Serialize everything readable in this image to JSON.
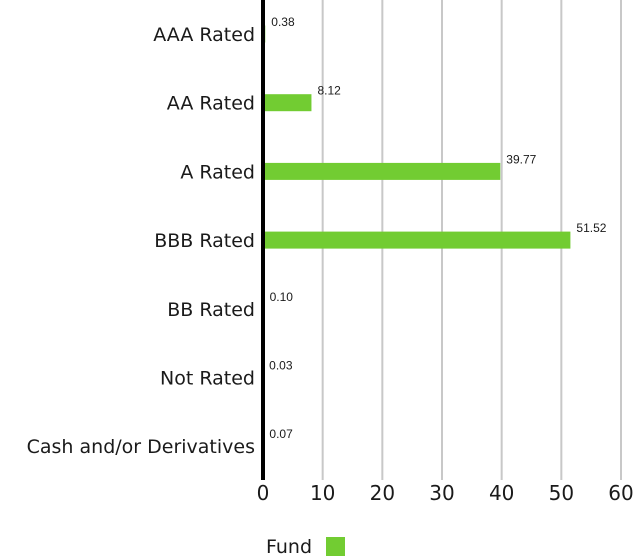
{
  "chart_data": {
    "type": "bar",
    "orientation": "horizontal",
    "categories": [
      "AAA Rated",
      "AA Rated",
      "A Rated",
      "BBB Rated",
      "BB Rated",
      "Not Rated",
      "Cash and/or Derivatives"
    ],
    "series": [
      {
        "name": "Fund",
        "values": [
          0.38,
          8.12,
          39.77,
          51.52,
          0.1,
          0.03,
          0.07
        ],
        "labels": [
          "0.38",
          "8.12",
          "39.77",
          "51.52",
          "0.10",
          "0.03",
          "0.07"
        ],
        "color": "#72cc32"
      }
    ],
    "xlim": [
      0,
      60
    ],
    "xticks": [
      "0",
      "10",
      "20",
      "30",
      "40",
      "50",
      "60"
    ],
    "grid": true,
    "gridColor": "#c8c8c8",
    "axisColor": "#000000",
    "legend": "bottom"
  }
}
